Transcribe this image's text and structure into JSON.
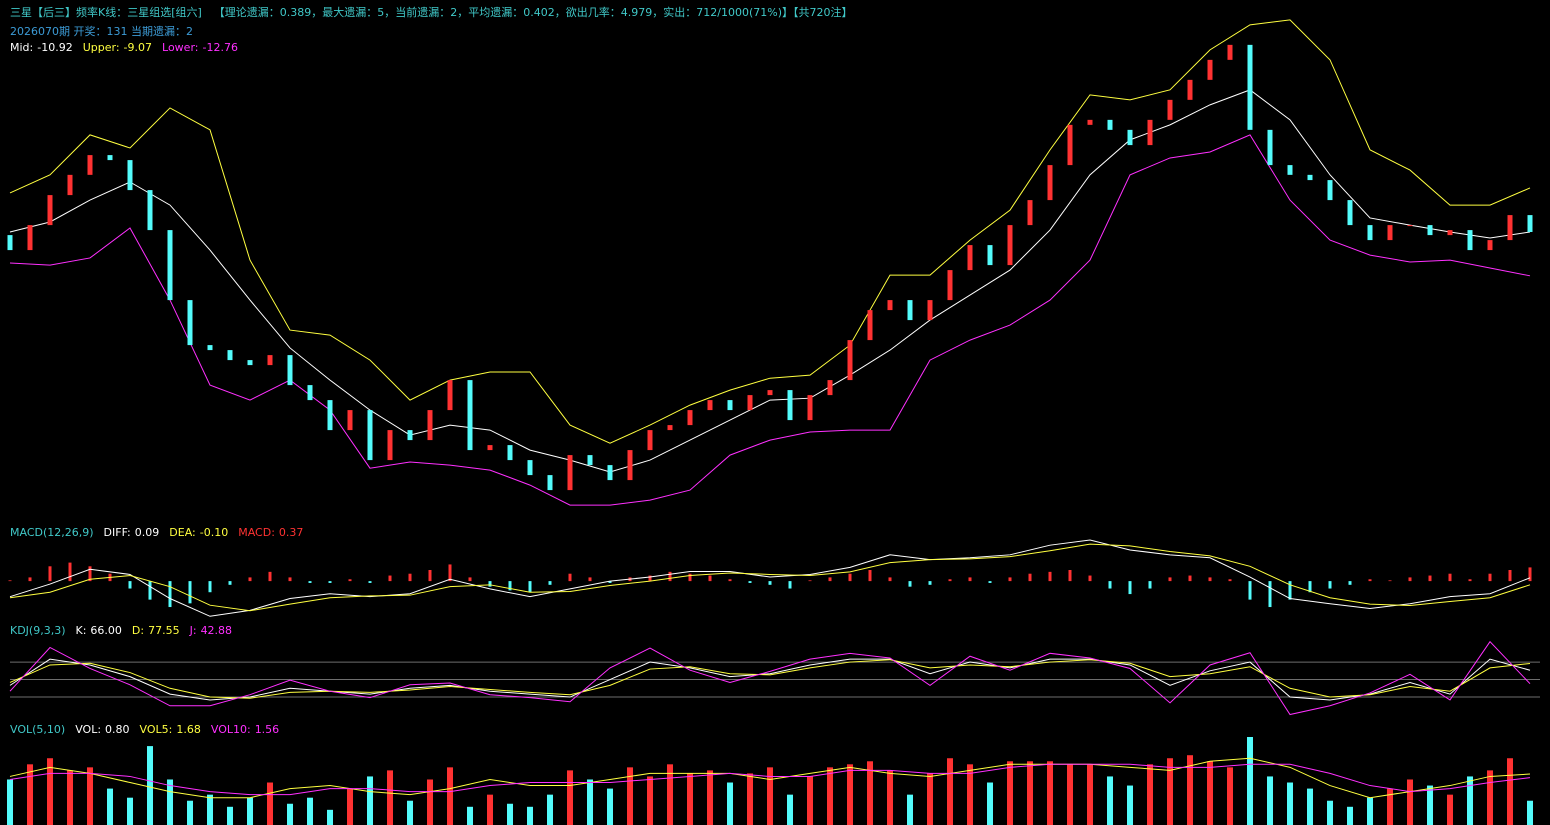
{
  "line_x": [
    0,
    2,
    4,
    6,
    8,
    10,
    12,
    14,
    16,
    18,
    20,
    22,
    24,
    26,
    28,
    30,
    32,
    34,
    36,
    38,
    40,
    42,
    44,
    46,
    48,
    50,
    52,
    54,
    56,
    58,
    60,
    62,
    64,
    66,
    68,
    70,
    72,
    74,
    76
  ],
  "chart_data": [
    {
      "type": "candlestick",
      "title": "三星【后三】频率K线：三星组选[组六]",
      "subtitle": "【理论遗漏：0.389，最大遗漏：5，当前遗漏：2，平均遗漏：0.402，欲出几率：4.979，实出：712/1000(71%)】【共720注】",
      "info": "2026070期 开奖：131 当期遗漏：2",
      "title_color": "#40c8c8",
      "info_color": "#3c9bd6",
      "up_color": "#ff3232",
      "down_color": "#54fcfc",
      "ylim": [
        -23.1,
        -1.68
      ],
      "open": [
        -11.05,
        -11.68,
        -10.63,
        -9.37,
        -8.52,
        -7.69,
        -7.9,
        -9.16,
        -10.84,
        -13.78,
        -15.67,
        -15.88,
        -16.3,
        -16.51,
        -16.09,
        -17.35,
        -17.98,
        -19.24,
        -18.4,
        -20.5,
        -19.24,
        -19.66,
        -18.4,
        -17.14,
        -20.08,
        -19.87,
        -20.5,
        -21.13,
        -21.76,
        -20.29,
        -20.71,
        -21.34,
        -20.08,
        -19.24,
        -19.03,
        -18.4,
        -17.98,
        -18.4,
        -17.77,
        -17.56,
        -18.82,
        -17.77,
        -17.14,
        -15.46,
        -14.2,
        -13.78,
        -14.62,
        -13.78,
        -12.52,
        -11.47,
        -12.31,
        -10.63,
        -9.58,
        -8.11,
        -6.42,
        -6.21,
        -6.63,
        -7.27,
        -6.21,
        -5.37,
        -4.53,
        -3.69,
        -3.06,
        -6.63,
        -8.11,
        -8.52,
        -8.74,
        -9.58,
        -10.63,
        -11.26,
        -10.63,
        -10.63,
        -11.05,
        -10.84,
        -11.68,
        -11.26,
        -10.21
      ],
      "close": [
        -11.68,
        -10.63,
        -9.37,
        -8.52,
        -7.69,
        -7.9,
        -9.16,
        -10.84,
        -13.78,
        -15.67,
        -15.88,
        -16.3,
        -16.51,
        -16.09,
        -17.35,
        -17.98,
        -19.24,
        -18.4,
        -20.5,
        -19.24,
        -19.66,
        -18.4,
        -17.14,
        -20.08,
        -19.87,
        -20.5,
        -21.13,
        -21.76,
        -20.29,
        -20.71,
        -21.34,
        -20.08,
        -19.24,
        -19.03,
        -18.4,
        -17.98,
        -18.4,
        -17.77,
        -17.56,
        -18.82,
        -17.77,
        -17.14,
        -15.46,
        -14.2,
        -13.78,
        -14.62,
        -13.78,
        -12.52,
        -11.47,
        -12.31,
        -10.63,
        -9.58,
        -8.11,
        -6.42,
        -6.21,
        -6.63,
        -7.27,
        -6.21,
        -5.37,
        -4.53,
        -3.69,
        -3.06,
        -6.63,
        -8.11,
        -8.52,
        -8.74,
        -9.58,
        -10.63,
        -11.26,
        -10.63,
        -10.63,
        -11.05,
        -10.84,
        -11.68,
        -11.26,
        -10.21,
        -10.92
      ],
      "series": [
        {
          "name": "Mid:",
          "color": "#ffffff",
          "value_label": "-10.92",
          "values": [
            -10.92,
            -10.5,
            -9.58,
            -8.82,
            -9.79,
            -11.68,
            -13.78,
            -15.79,
            -17.14,
            -18.4,
            -19.45,
            -19.03,
            -19.24,
            -20.08,
            -20.5,
            -21.0,
            -20.5,
            -19.66,
            -18.82,
            -17.98,
            -17.9,
            -16.93,
            -15.88,
            -14.62,
            -13.57,
            -12.52,
            -10.84,
            -8.52,
            -7.05,
            -6.42,
            -5.58,
            -4.95,
            -6.21,
            -8.52,
            -10.33,
            -10.63,
            -10.92,
            -11.17,
            -10.92
          ]
        },
        {
          "name": "Upper:",
          "color": "#ffff40",
          "value_label": "-9.07",
          "values": [
            -9.28,
            -8.52,
            -6.84,
            -7.39,
            -5.71,
            -6.63,
            -12.1,
            -15.04,
            -15.25,
            -16.3,
            -17.98,
            -17.14,
            -16.8,
            -16.8,
            -19.03,
            -19.79,
            -19.03,
            -18.19,
            -17.56,
            -17.06,
            -16.93,
            -15.67,
            -12.73,
            -12.73,
            -11.26,
            -10.0,
            -7.47,
            -5.16,
            -5.37,
            -4.95,
            -3.27,
            -2.22,
            -2.01,
            -3.69,
            -7.47,
            -8.32,
            -9.79,
            -9.79,
            -9.07
          ]
        },
        {
          "name": "Lower:",
          "color": "#ff30ff",
          "value_label": "-12.76",
          "values": [
            -12.22,
            -12.31,
            -12.01,
            -10.75,
            -13.78,
            -17.35,
            -17.98,
            -17.14,
            -18.4,
            -20.84,
            -20.58,
            -20.71,
            -20.92,
            -21.55,
            -22.39,
            -22.39,
            -22.18,
            -21.76,
            -20.29,
            -19.66,
            -19.32,
            -19.24,
            -19.24,
            -16.3,
            -15.46,
            -14.83,
            -13.78,
            -12.1,
            -8.52,
            -7.81,
            -7.56,
            -6.84,
            -9.58,
            -11.26,
            -11.89,
            -12.18,
            -12.1,
            -12.43,
            -12.76
          ]
        }
      ]
    },
    {
      "type": "macd",
      "title": "MACD(12,26,9)",
      "title_color": "#40c8c8",
      "neg_color": "#54fcfc",
      "ylim": [
        -1.05,
        1.11
      ],
      "series": [
        {
          "name": "DIFF:",
          "color": "#ffffff",
          "value_label": "0.09",
          "values": [
            -0.42,
            -0.08,
            0.32,
            0.18,
            -0.47,
            -0.95,
            -0.79,
            -0.47,
            -0.34,
            -0.42,
            -0.34,
            0.05,
            -0.21,
            -0.42,
            -0.21,
            0.0,
            0.11,
            0.26,
            0.26,
            0.11,
            0.18,
            0.37,
            0.71,
            0.58,
            0.63,
            0.71,
            0.97,
            1.11,
            0.84,
            0.71,
            0.63,
            0.11,
            -0.47,
            -0.61,
            -0.74,
            -0.61,
            -0.42,
            -0.34,
            0.09
          ]
        },
        {
          "name": "DEA:",
          "color": "#ffff40",
          "value_label": "-0.10",
          "values": [
            -0.45,
            -0.3,
            0.05,
            0.15,
            -0.15,
            -0.65,
            -0.8,
            -0.62,
            -0.45,
            -0.4,
            -0.38,
            -0.15,
            -0.1,
            -0.3,
            -0.28,
            -0.12,
            0.0,
            0.15,
            0.22,
            0.18,
            0.15,
            0.25,
            0.5,
            0.58,
            0.6,
            0.66,
            0.82,
            1.0,
            0.95,
            0.8,
            0.68,
            0.4,
            -0.1,
            -0.45,
            -0.62,
            -0.66,
            -0.55,
            -0.45,
            -0.1
          ]
        },
        {
          "name": "MACD:",
          "color": "#ff3232",
          "kind": "bar",
          "value_label": "0.37",
          "values": [
            0.02,
            0.1,
            0.4,
            0.5,
            0.4,
            0.2,
            -0.2,
            -0.5,
            -0.7,
            -0.6,
            -0.3,
            -0.1,
            0.1,
            0.25,
            0.1,
            -0.05,
            -0.05,
            0.05,
            -0.05,
            0.15,
            0.2,
            0.3,
            0.45,
            0.1,
            -0.15,
            -0.25,
            -0.3,
            -0.1,
            0.2,
            0.1,
            -0.05,
            0.1,
            0.15,
            0.25,
            0.2,
            0.15,
            0.05,
            -0.05,
            -0.1,
            -0.2,
            0.02,
            0.1,
            0.2,
            0.3,
            0.1,
            -0.15,
            -0.1,
            0.05,
            0.1,
            -0.05,
            0.1,
            0.2,
            0.25,
            0.3,
            0.15,
            -0.2,
            -0.35,
            -0.2,
            0.1,
            0.15,
            0.1,
            0.05,
            -0.5,
            -0.7,
            -0.5,
            -0.3,
            -0.2,
            -0.1,
            0.05,
            0.02,
            0.1,
            0.15,
            0.2,
            0.05,
            0.2,
            0.3,
            0.37
          ]
        }
      ]
    },
    {
      "type": "kdj",
      "title": "KDJ(9,3,3)",
      "title_color": "#40c8c8",
      "ref_lines": [
        20,
        50,
        80
      ],
      "ref_color": "#6e6e6e",
      "ylim": [
        -19.4,
        123
      ],
      "series": [
        {
          "name": "K:",
          "color": "#ffffff",
          "value_label": "66.00",
          "values": [
            40,
            85,
            75,
            55,
            25,
            15,
            20,
            35,
            30,
            25,
            35,
            40,
            30,
            25,
            20,
            50,
            80,
            70,
            55,
            60,
            75,
            85,
            85,
            60,
            80,
            70,
            85,
            85,
            75,
            40,
            65,
            80,
            20,
            15,
            25,
            45,
            25,
            85,
            66
          ]
        },
        {
          "name": "D:",
          "color": "#ffff40",
          "value_label": "77.55",
          "values": [
            45,
            75,
            78,
            62,
            35,
            20,
            18,
            28,
            30,
            28,
            32,
            38,
            33,
            28,
            24,
            40,
            68,
            72,
            60,
            58,
            70,
            80,
            84,
            70,
            75,
            72,
            80,
            84,
            78,
            55,
            60,
            72,
            35,
            20,
            24,
            38,
            30,
            70,
            77.55
          ]
        },
        {
          "name": "J:",
          "color": "#ff30ff",
          "value_label": "42.88",
          "values": [
            30,
            105,
            69,
            41,
            5,
            5,
            24,
            49,
            30,
            19,
            41,
            44,
            24,
            19,
            12,
            70,
            104,
            66,
            45,
            64,
            85,
            95,
            87,
            40,
            90,
            66,
            95,
            87,
            69,
            10,
            75,
            96,
            -10,
            5,
            27,
            59,
            15,
            115,
            42.88
          ]
        }
      ]
    },
    {
      "type": "volume",
      "title": "VOL(5,10)",
      "title_color": "#40c8c8",
      "up_color": "#ff3232",
      "down_color": "#54fcfc",
      "ylim": [
        0,
        2.9
      ],
      "series": [
        {
          "name": "VOL:",
          "color": "#ffffff",
          "kind": "bar",
          "value_label": "0.80",
          "values": [
            1.5,
            2.0,
            2.2,
            1.8,
            1.9,
            1.2,
            0.9,
            2.6,
            1.5,
            0.8,
            1.0,
            0.6,
            0.9,
            1.4,
            0.7,
            0.9,
            0.5,
            1.2,
            1.6,
            1.8,
            0.8,
            1.5,
            1.9,
            0.6,
            1.0,
            0.7,
            0.6,
            1.0,
            1.8,
            1.5,
            1.2,
            1.9,
            1.6,
            2.0,
            1.7,
            1.8,
            1.4,
            1.7,
            1.9,
            1.0,
            1.6,
            1.9,
            2.0,
            2.1,
            1.8,
            1.0,
            1.7,
            2.2,
            2.0,
            1.4,
            2.1,
            2.1,
            2.1,
            2.0,
            2.0,
            1.6,
            1.3,
            2.0,
            2.2,
            2.3,
            2.1,
            1.9,
            2.9,
            1.6,
            1.4,
            1.2,
            0.8,
            0.6,
            0.9,
            1.2,
            1.5,
            1.3,
            1.0,
            1.6,
            1.8,
            2.2,
            0.8
          ]
        },
        {
          "name": "VOL5:",
          "color": "#ffff40",
          "value_label": "1.68",
          "values": [
            1.6,
            1.9,
            1.7,
            1.4,
            1.1,
            0.9,
            0.9,
            1.2,
            1.3,
            1.1,
            1.0,
            1.2,
            1.5,
            1.3,
            1.3,
            1.5,
            1.7,
            1.7,
            1.7,
            1.5,
            1.7,
            1.9,
            1.7,
            1.6,
            1.8,
            2.0,
            2.0,
            2.0,
            1.9,
            1.8,
            2.1,
            2.2,
            1.9,
            1.3,
            0.9,
            1.1,
            1.3,
            1.6,
            1.68
          ]
        },
        {
          "name": "VOL10:",
          "color": "#ff30ff",
          "value_label": "1.56",
          "values": [
            1.5,
            1.7,
            1.7,
            1.6,
            1.3,
            1.1,
            1.0,
            1.0,
            1.2,
            1.2,
            1.1,
            1.1,
            1.3,
            1.4,
            1.4,
            1.4,
            1.5,
            1.6,
            1.7,
            1.6,
            1.6,
            1.8,
            1.8,
            1.7,
            1.7,
            1.9,
            2.0,
            2.0,
            2.0,
            1.9,
            1.9,
            2.0,
            2.0,
            1.7,
            1.3,
            1.1,
            1.2,
            1.4,
            1.56
          ]
        }
      ]
    }
  ]
}
